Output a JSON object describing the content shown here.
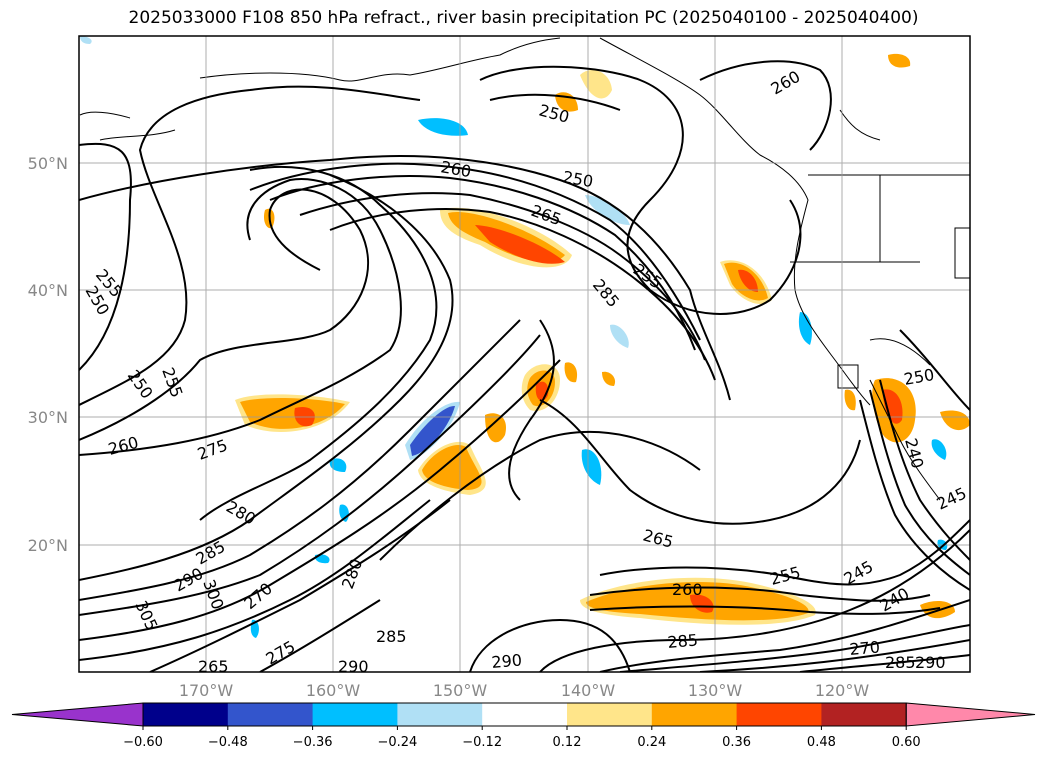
{
  "chart_data": {
    "type": "map",
    "title": "2025033000 F108 850 hPa refract., river basin precipitation PC (2025040100 - 2025040400)",
    "lat_labels": [
      "50°N",
      "40°N",
      "30°N",
      "20°N"
    ],
    "lon_labels": [
      "170°W",
      "160°W",
      "150°W",
      "140°W",
      "130°W",
      "120°W"
    ],
    "extent": {
      "lon": [
        -180,
        -110
      ],
      "lat": [
        10,
        60
      ]
    },
    "colorbar": {
      "ticks": [
        "−0.60",
        "−0.48",
        "−0.36",
        "−0.24",
        "−0.12",
        "0.12",
        "0.24",
        "0.36",
        "0.48",
        "0.60"
      ],
      "colors": [
        "#9933cc",
        "#00008b",
        "#3355cc",
        "#00bfff",
        "#b0e0f5",
        "#ffffff",
        "#ffe58a",
        "#ffa500",
        "#ff4500",
        "#b22222",
        "#ff88aa"
      ],
      "extend": "both"
    },
    "contour_labels": [
      "250",
      "255",
      "250",
      "255",
      "260",
      "275",
      "280",
      "285",
      "290",
      "300",
      "305",
      "270",
      "275",
      "265",
      "280",
      "285",
      "290",
      "290",
      "285",
      "265",
      "260",
      "255",
      "245",
      "240",
      "270",
      "285",
      "290",
      "250",
      "245",
      "240",
      "250",
      "260",
      "265",
      "285",
      "255",
      "260",
      "250"
    ]
  }
}
